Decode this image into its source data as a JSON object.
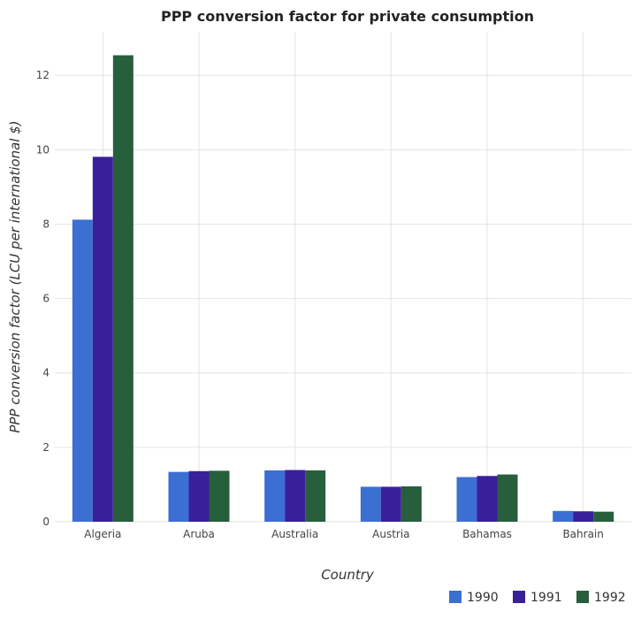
{
  "chart_data": {
    "type": "bar",
    "title": "PPP conversion factor for private consumption",
    "xlabel": "Country",
    "ylabel": "PPP conversion factor (LCU per international $)",
    "categories": [
      "Algeria",
      "Aruba",
      "Australia",
      "Austria",
      "Bahamas",
      "Bahrain"
    ],
    "series": [
      {
        "name": "1990",
        "color": "#3b6fd1",
        "values": [
          8.12,
          1.34,
          1.38,
          0.94,
          1.2,
          0.29
        ]
      },
      {
        "name": "1991",
        "color": "#3a1f9b",
        "values": [
          9.81,
          1.36,
          1.39,
          0.94,
          1.23,
          0.28
        ]
      },
      {
        "name": "1992",
        "color": "#275e3c",
        "values": [
          12.54,
          1.37,
          1.38,
          0.95,
          1.27,
          0.27
        ]
      }
    ],
    "yticks": [
      0,
      2,
      4,
      6,
      8,
      10,
      12
    ],
    "ylim": [
      0,
      13.17
    ],
    "grid": true,
    "legend_position": "bottom-right"
  }
}
